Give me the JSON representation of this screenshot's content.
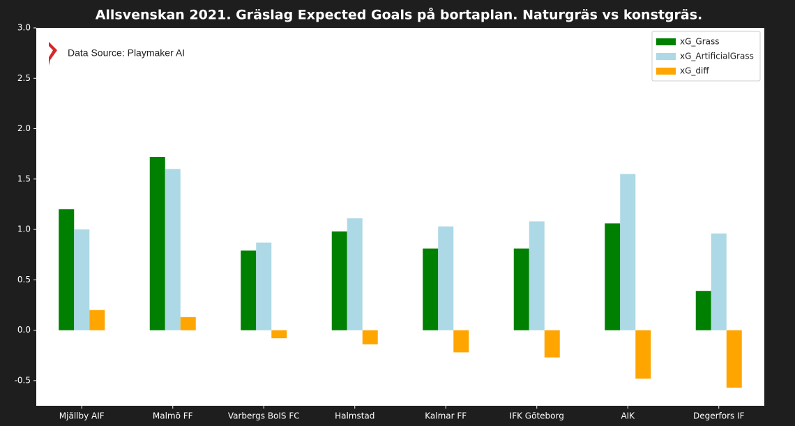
{
  "chart_data": {
    "type": "bar",
    "title": "Allsvenskan 2021. Gräslag Expected Goals på bortaplan. Naturgräs vs konstgräs.",
    "annotation": "Data Source: Playmaker AI",
    "categories": [
      "Mjällby AIF",
      "Malmö FF",
      "Varbergs BoIS FC",
      "Halmstad",
      "Kalmar FF",
      "IFK Göteborg",
      "AIK",
      "Degerfors IF"
    ],
    "series": [
      {
        "name": "xG_Grass",
        "color": "#008000",
        "values": [
          1.2,
          1.72,
          0.79,
          0.98,
          0.81,
          0.81,
          1.06,
          0.39
        ]
      },
      {
        "name": "xG_ArtificialGrass",
        "color": "#add8e6",
        "values": [
          1.0,
          1.6,
          0.87,
          1.11,
          1.03,
          1.08,
          1.55,
          0.96
        ]
      },
      {
        "name": "xG_diff",
        "color": "#ffa500",
        "values": [
          0.2,
          0.13,
          -0.08,
          -0.14,
          -0.22,
          -0.27,
          -0.48,
          -0.57
        ]
      }
    ],
    "ylim": [
      -0.75,
      3.0
    ],
    "yticks": [
      -0.5,
      {
        "value": 0,
        "label": "0.0"
      },
      0.5,
      {
        "value": 1,
        "label": "1.0"
      },
      1.5,
      {
        "value": 2,
        "label": "2.0"
      },
      2.5,
      {
        "value": 3,
        "label": "3.0"
      }
    ],
    "legend": "upper right",
    "grid": false
  }
}
